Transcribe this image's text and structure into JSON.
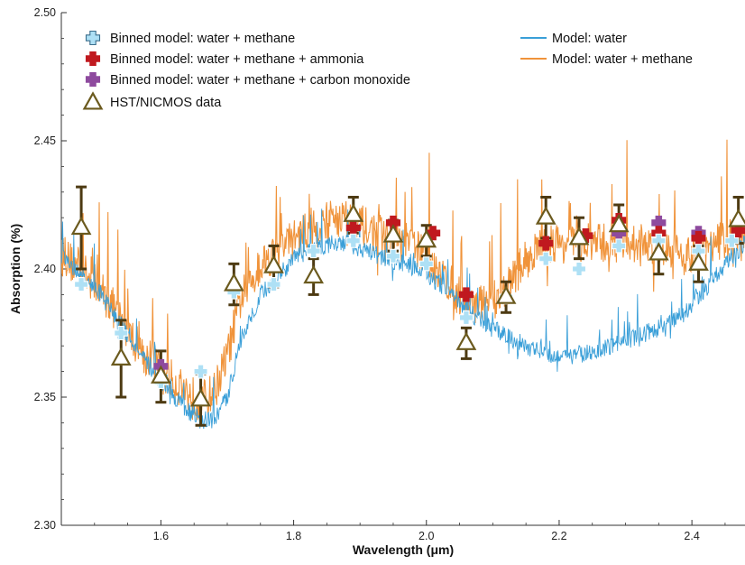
{
  "chart_data": {
    "type": "line",
    "xlabel": "Wavelength (μm)",
    "ylabel": "Absorption (%)",
    "xlim": [
      1.45,
      2.48
    ],
    "ylim": [
      2.3,
      2.5
    ],
    "xticks": [
      1.6,
      1.8,
      2.0,
      2.2,
      2.4
    ],
    "xtick_labels": [
      "1.6",
      "1.8",
      "2.0",
      "2.2",
      "2.4"
    ],
    "yticks": [
      2.3,
      2.35,
      2.4,
      2.45,
      2.5
    ],
    "ytick_labels": [
      "2.30",
      "2.35",
      "2.40",
      "2.45",
      "2.50"
    ],
    "grid": false,
    "legend_position": "top",
    "colors": {
      "model_water": "#3a9fd8",
      "model_water_methane": "#f0933a",
      "binned_water_methane": "#aee0f5",
      "binned_ammonia": "#c0191f",
      "binned_co": "#8e4a9e",
      "hst_marker": "#6b5a1e",
      "hst_errorbar": "#4d3a12"
    },
    "legend": {
      "binned_water_methane": "Binned model: water + methane",
      "binned_ammonia": "Binned model: water + methane + ammonia",
      "binned_co": "Binned model: water + methane + carbon monoxide",
      "hst": "HST/NICMOS data",
      "model_water": "Model: water",
      "model_water_methane": "Model: water + methane"
    },
    "series": [
      {
        "name": "Model: water",
        "kind": "line",
        "x": [
          1.45,
          1.48,
          1.51,
          1.54,
          1.57,
          1.6,
          1.62,
          1.64,
          1.66,
          1.68,
          1.7,
          1.72,
          1.75,
          1.78,
          1.8,
          1.83,
          1.86,
          1.88,
          1.91,
          1.94,
          1.97,
          2.0,
          2.03,
          2.06,
          2.09,
          2.12,
          2.15,
          2.18,
          2.21,
          2.24,
          2.27,
          2.3,
          2.33,
          2.36,
          2.39,
          2.42,
          2.45,
          2.48
        ],
        "values": [
          2.405,
          2.397,
          2.39,
          2.378,
          2.366,
          2.356,
          2.35,
          2.345,
          2.341,
          2.341,
          2.35,
          2.372,
          2.39,
          2.398,
          2.404,
          2.408,
          2.41,
          2.41,
          2.407,
          2.404,
          2.402,
          2.398,
          2.392,
          2.384,
          2.378,
          2.374,
          2.37,
          2.367,
          2.366,
          2.367,
          2.369,
          2.372,
          2.375,
          2.378,
          2.383,
          2.392,
          2.402,
          2.41
        ]
      },
      {
        "name": "Model: water + methane",
        "kind": "line",
        "x": [
          1.45,
          1.48,
          1.51,
          1.54,
          1.57,
          1.6,
          1.62,
          1.64,
          1.66,
          1.68,
          1.7,
          1.72,
          1.75,
          1.78,
          1.8,
          1.83,
          1.86,
          1.88,
          1.91,
          1.94,
          1.97,
          2.0,
          2.03,
          2.06,
          2.09,
          2.12,
          2.15,
          2.18,
          2.21,
          2.24,
          2.27,
          2.3,
          2.33,
          2.36,
          2.39,
          2.42,
          2.45,
          2.48
        ],
        "values": [
          2.406,
          2.399,
          2.392,
          2.38,
          2.368,
          2.36,
          2.356,
          2.352,
          2.348,
          2.352,
          2.366,
          2.388,
          2.402,
          2.408,
          2.412,
          2.415,
          2.42,
          2.42,
          2.416,
          2.412,
          2.41,
          2.406,
          2.396,
          2.386,
          2.386,
          2.392,
          2.404,
          2.41,
          2.41,
          2.41,
          2.41,
          2.41,
          2.41,
          2.408,
          2.405,
          2.408,
          2.412,
          2.41
        ]
      },
      {
        "name": "Binned model: water + methane",
        "kind": "markers",
        "x": [
          1.48,
          1.54,
          1.6,
          1.66,
          1.71,
          1.77,
          1.83,
          1.89,
          1.95,
          2.0,
          2.06,
          2.12,
          2.18,
          2.23,
          2.29,
          2.35,
          2.41,
          2.46
        ],
        "values": [
          2.394,
          2.375,
          2.356,
          2.36,
          2.391,
          2.394,
          2.407,
          2.411,
          2.405,
          2.402,
          2.381,
          2.389,
          2.404,
          2.4,
          2.409,
          2.411,
          2.407,
          2.411
        ]
      },
      {
        "name": "Binned model: water + methane + ammonia",
        "kind": "markers",
        "x": [
          1.89,
          1.95,
          2.01,
          2.06,
          2.18,
          2.24,
          2.29,
          2.35,
          2.41,
          2.47
        ],
        "values": [
          2.416,
          2.418,
          2.414,
          2.39,
          2.41,
          2.413,
          2.419,
          2.414,
          2.412,
          2.415
        ]
      },
      {
        "name": "Binned model: water + methane + carbon monoxide",
        "kind": "markers",
        "x": [
          1.6,
          2.29,
          2.35,
          2.41
        ],
        "values": [
          2.362,
          2.414,
          2.418,
          2.414
        ]
      },
      {
        "name": "HST/NICMOS data",
        "kind": "errorbar",
        "x": [
          1.48,
          1.54,
          1.6,
          1.66,
          1.71,
          1.77,
          1.83,
          1.89,
          1.95,
          2.0,
          2.06,
          2.12,
          2.18,
          2.23,
          2.29,
          2.35,
          2.41,
          2.47
        ],
        "values": [
          2.416,
          2.365,
          2.358,
          2.349,
          2.394,
          2.401,
          2.397,
          2.421,
          2.413,
          2.411,
          2.371,
          2.389,
          2.42,
          2.412,
          2.417,
          2.406,
          2.402,
          2.419
        ],
        "errors": [
          0.016,
          0.015,
          0.01,
          0.01,
          0.008,
          0.008,
          0.007,
          0.007,
          0.006,
          0.006,
          0.006,
          0.006,
          0.008,
          0.008,
          0.008,
          0.008,
          0.007,
          0.009
        ]
      }
    ]
  }
}
